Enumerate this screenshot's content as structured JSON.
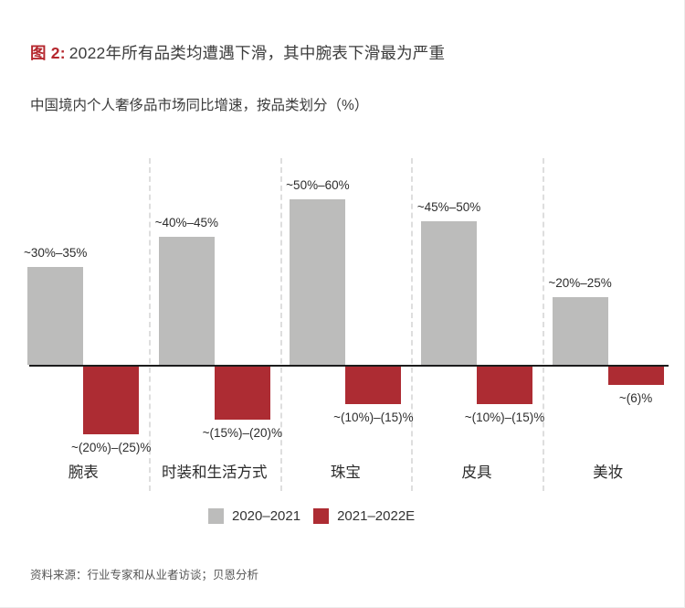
{
  "header": {
    "figure_label": "图 2:",
    "title": "2022年所有品类均遭遇下滑，其中腕表下滑最为严重",
    "subtitle": "中国境内个人奢侈品市场同比增速，按品类划分（%）"
  },
  "chart_data": {
    "type": "bar",
    "categories": [
      "腕表",
      "时装和生活方式",
      "珠宝",
      "皮具",
      "美妆"
    ],
    "series": [
      {
        "name": "2020–2021",
        "color": "#bcbcbb",
        "labels": [
          "~30%–35%",
          "~40%–45%",
          "~50%–60%",
          "~45%–50%",
          "~20%–25%"
        ],
        "values_mid": [
          32.5,
          42.5,
          55,
          47.5,
          22.5
        ],
        "value_ranges": [
          [
            30,
            35
          ],
          [
            40,
            45
          ],
          [
            50,
            60
          ],
          [
            45,
            50
          ],
          [
            20,
            25
          ]
        ]
      },
      {
        "name": "2021–2022E",
        "color": "#ad2c33",
        "labels": [
          "~(20%)–(25)%",
          "~(15%)–(20)%",
          "~(10%)–(15)%",
          "~(10%)–(15)%",
          "~(6)%"
        ],
        "values_mid": [
          -22.5,
          -17.5,
          -12.5,
          -12.5,
          -6
        ],
        "value_ranges": [
          [
            -20,
            -25
          ],
          [
            -15,
            -20
          ],
          [
            -10,
            -15
          ],
          [
            -10,
            -15
          ],
          [
            -6,
            -6
          ]
        ]
      }
    ],
    "unit": "%",
    "baseline": 0,
    "ylim_approx": [
      -25,
      60
    ],
    "grid": "dashed vertical separators between categories",
    "legend_position": "bottom"
  },
  "legend": [
    {
      "label": "2020–2021",
      "color": "#bcbcbb"
    },
    {
      "label": "2021–2022E",
      "color": "#ad2c33"
    }
  ],
  "footer": {
    "source": "资料来源：行业专家和从业者访谈；贝恩分析"
  }
}
